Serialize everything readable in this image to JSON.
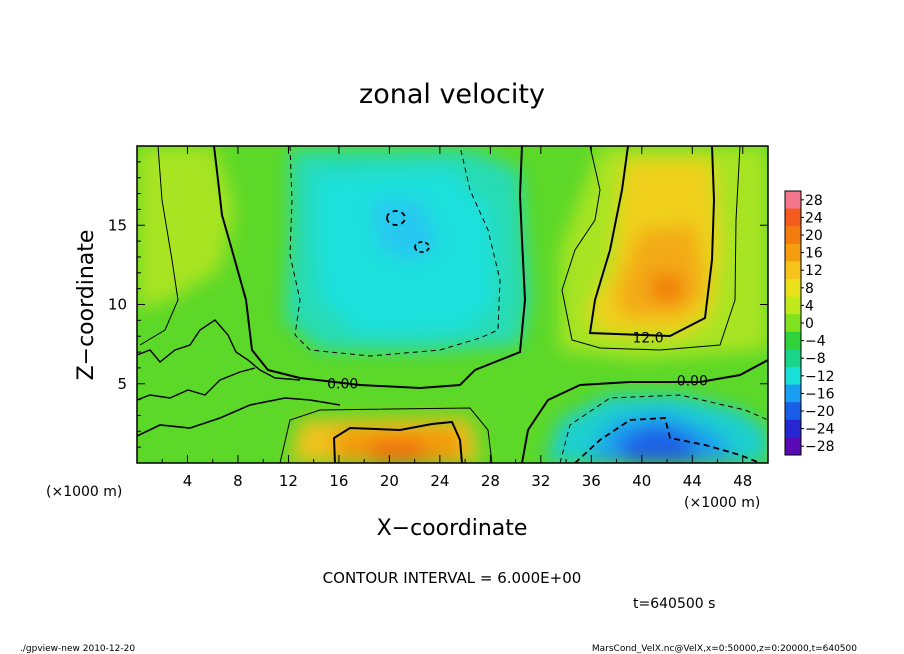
{
  "chart_data": {
    "type": "heatmap",
    "title": "zonal velocity",
    "xlabel": "X−coordinate",
    "ylabel": "Z−coordinate",
    "x_unit_label": "(×1000 m)",
    "y_unit_label": "(×1000 m)",
    "xlim": [
      0,
      50
    ],
    "ylim": [
      0,
      20
    ],
    "x_ticks": [
      4,
      8,
      12,
      16,
      20,
      24,
      28,
      32,
      36,
      40,
      44,
      48
    ],
    "y_ticks": [
      5,
      10,
      15
    ],
    "colorbar": {
      "levels": [
        28,
        24,
        20,
        16,
        12,
        8,
        4,
        0,
        -4,
        -8,
        -12,
        -16,
        -20,
        -24,
        -28
      ],
      "labels": [
        "28",
        "24",
        "20",
        "16",
        "12",
        "8",
        "4",
        "0",
        "−4",
        "−8",
        "−12",
        "−16",
        "−20",
        "−24",
        "−28"
      ],
      "colors": [
        "#f4768c",
        "#f55a1e",
        "#f27d0c",
        "#f59e10",
        "#f7c41c",
        "#e9e21a",
        "#c0ea1c",
        "#80e21e",
        "#30d23c",
        "#18d58a",
        "#18dfd8",
        "#1a9ef2",
        "#1a5ee8",
        "#2626d2",
        "#5a0ab4"
      ]
    },
    "contour_labels": [
      {
        "text": "0.00",
        "x": 16.3,
        "z": 4.7
      },
      {
        "text": "12.0",
        "x": 40.5,
        "z": 7.6
      },
      {
        "text": "0.00",
        "x": 44.0,
        "z": 4.9
      }
    ],
    "contour_interval_text": "CONTOUR INTERVAL = 6.000E+00",
    "time_text": "t=640500 s"
  },
  "footer": {
    "left": "./gpview-new  2010-12-20",
    "right": "MarsCond_VelX.nc@VelX,x=0:50000,z=0:20000,t=640500"
  }
}
